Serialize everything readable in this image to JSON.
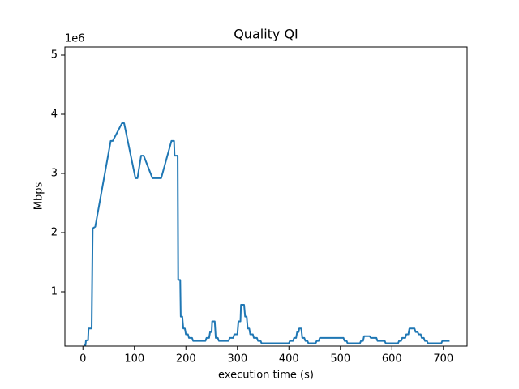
{
  "chart_data": {
    "type": "line",
    "title": "Quality QI",
    "xlabel": "execution time (s)",
    "ylabel": "Mbps",
    "y_offset_text": "1e6",
    "x": [
      2,
      5,
      6,
      10,
      11,
      17,
      19,
      24,
      54,
      58,
      76,
      80,
      102,
      106,
      113,
      118,
      135,
      152,
      172,
      177,
      178,
      184,
      185,
      189,
      190,
      193,
      195,
      198,
      200,
      204,
      206,
      212,
      214,
      238,
      240,
      245,
      247,
      250,
      251,
      256,
      258,
      262,
      264,
      283,
      285,
      292,
      294,
      300,
      302,
      306,
      307,
      313,
      315,
      318,
      320,
      323,
      325,
      330,
      332,
      338,
      340,
      345,
      347,
      400,
      402,
      408,
      410,
      414,
      416,
      419,
      420,
      424,
      426,
      430,
      432,
      436,
      438,
      452,
      454,
      458,
      460,
      506,
      508,
      512,
      514,
      538,
      540,
      544,
      546,
      557,
      559,
      570,
      572,
      586,
      588,
      612,
      614,
      618,
      620,
      626,
      628,
      632,
      634,
      644,
      646,
      650,
      652,
      656,
      658,
      662,
      664,
      668,
      670,
      696,
      698,
      712
    ],
    "series": [
      {
        "name": "Mbps",
        "color": "#1f77b4",
        "values": [
          100000,
          100000,
          180000,
          180000,
          380000,
          380000,
          2070000,
          2100000,
          3550000,
          3550000,
          3850000,
          3850000,
          2920000,
          2920000,
          3300000,
          3300000,
          2920000,
          2920000,
          3550000,
          3550000,
          3300000,
          3300000,
          1200000,
          1200000,
          580000,
          580000,
          380000,
          380000,
          280000,
          280000,
          220000,
          220000,
          170000,
          170000,
          220000,
          220000,
          320000,
          320000,
          500000,
          500000,
          220000,
          220000,
          170000,
          170000,
          220000,
          220000,
          280000,
          280000,
          500000,
          500000,
          780000,
          780000,
          580000,
          580000,
          380000,
          380000,
          280000,
          280000,
          220000,
          220000,
          170000,
          170000,
          130000,
          130000,
          170000,
          170000,
          220000,
          220000,
          320000,
          320000,
          380000,
          380000,
          220000,
          220000,
          170000,
          170000,
          130000,
          130000,
          170000,
          170000,
          220000,
          220000,
          170000,
          170000,
          130000,
          130000,
          170000,
          170000,
          250000,
          250000,
          220000,
          220000,
          170000,
          170000,
          130000,
          130000,
          170000,
          170000,
          220000,
          220000,
          280000,
          280000,
          380000,
          380000,
          320000,
          320000,
          280000,
          280000,
          220000,
          220000,
          170000,
          170000,
          130000,
          130000,
          170000,
          170000
        ]
      }
    ],
    "xlim": [
      -35,
      746
    ],
    "ylim": [
      82000,
      5137000
    ],
    "xticks": [
      0,
      100,
      200,
      300,
      400,
      500,
      600,
      700
    ],
    "yticks": [
      {
        "value": 1000000,
        "label": "1"
      },
      {
        "value": 2000000,
        "label": "2"
      },
      {
        "value": 3000000,
        "label": "3"
      },
      {
        "value": 4000000,
        "label": "4"
      },
      {
        "value": 5000000,
        "label": "5"
      }
    ],
    "grid": false
  }
}
